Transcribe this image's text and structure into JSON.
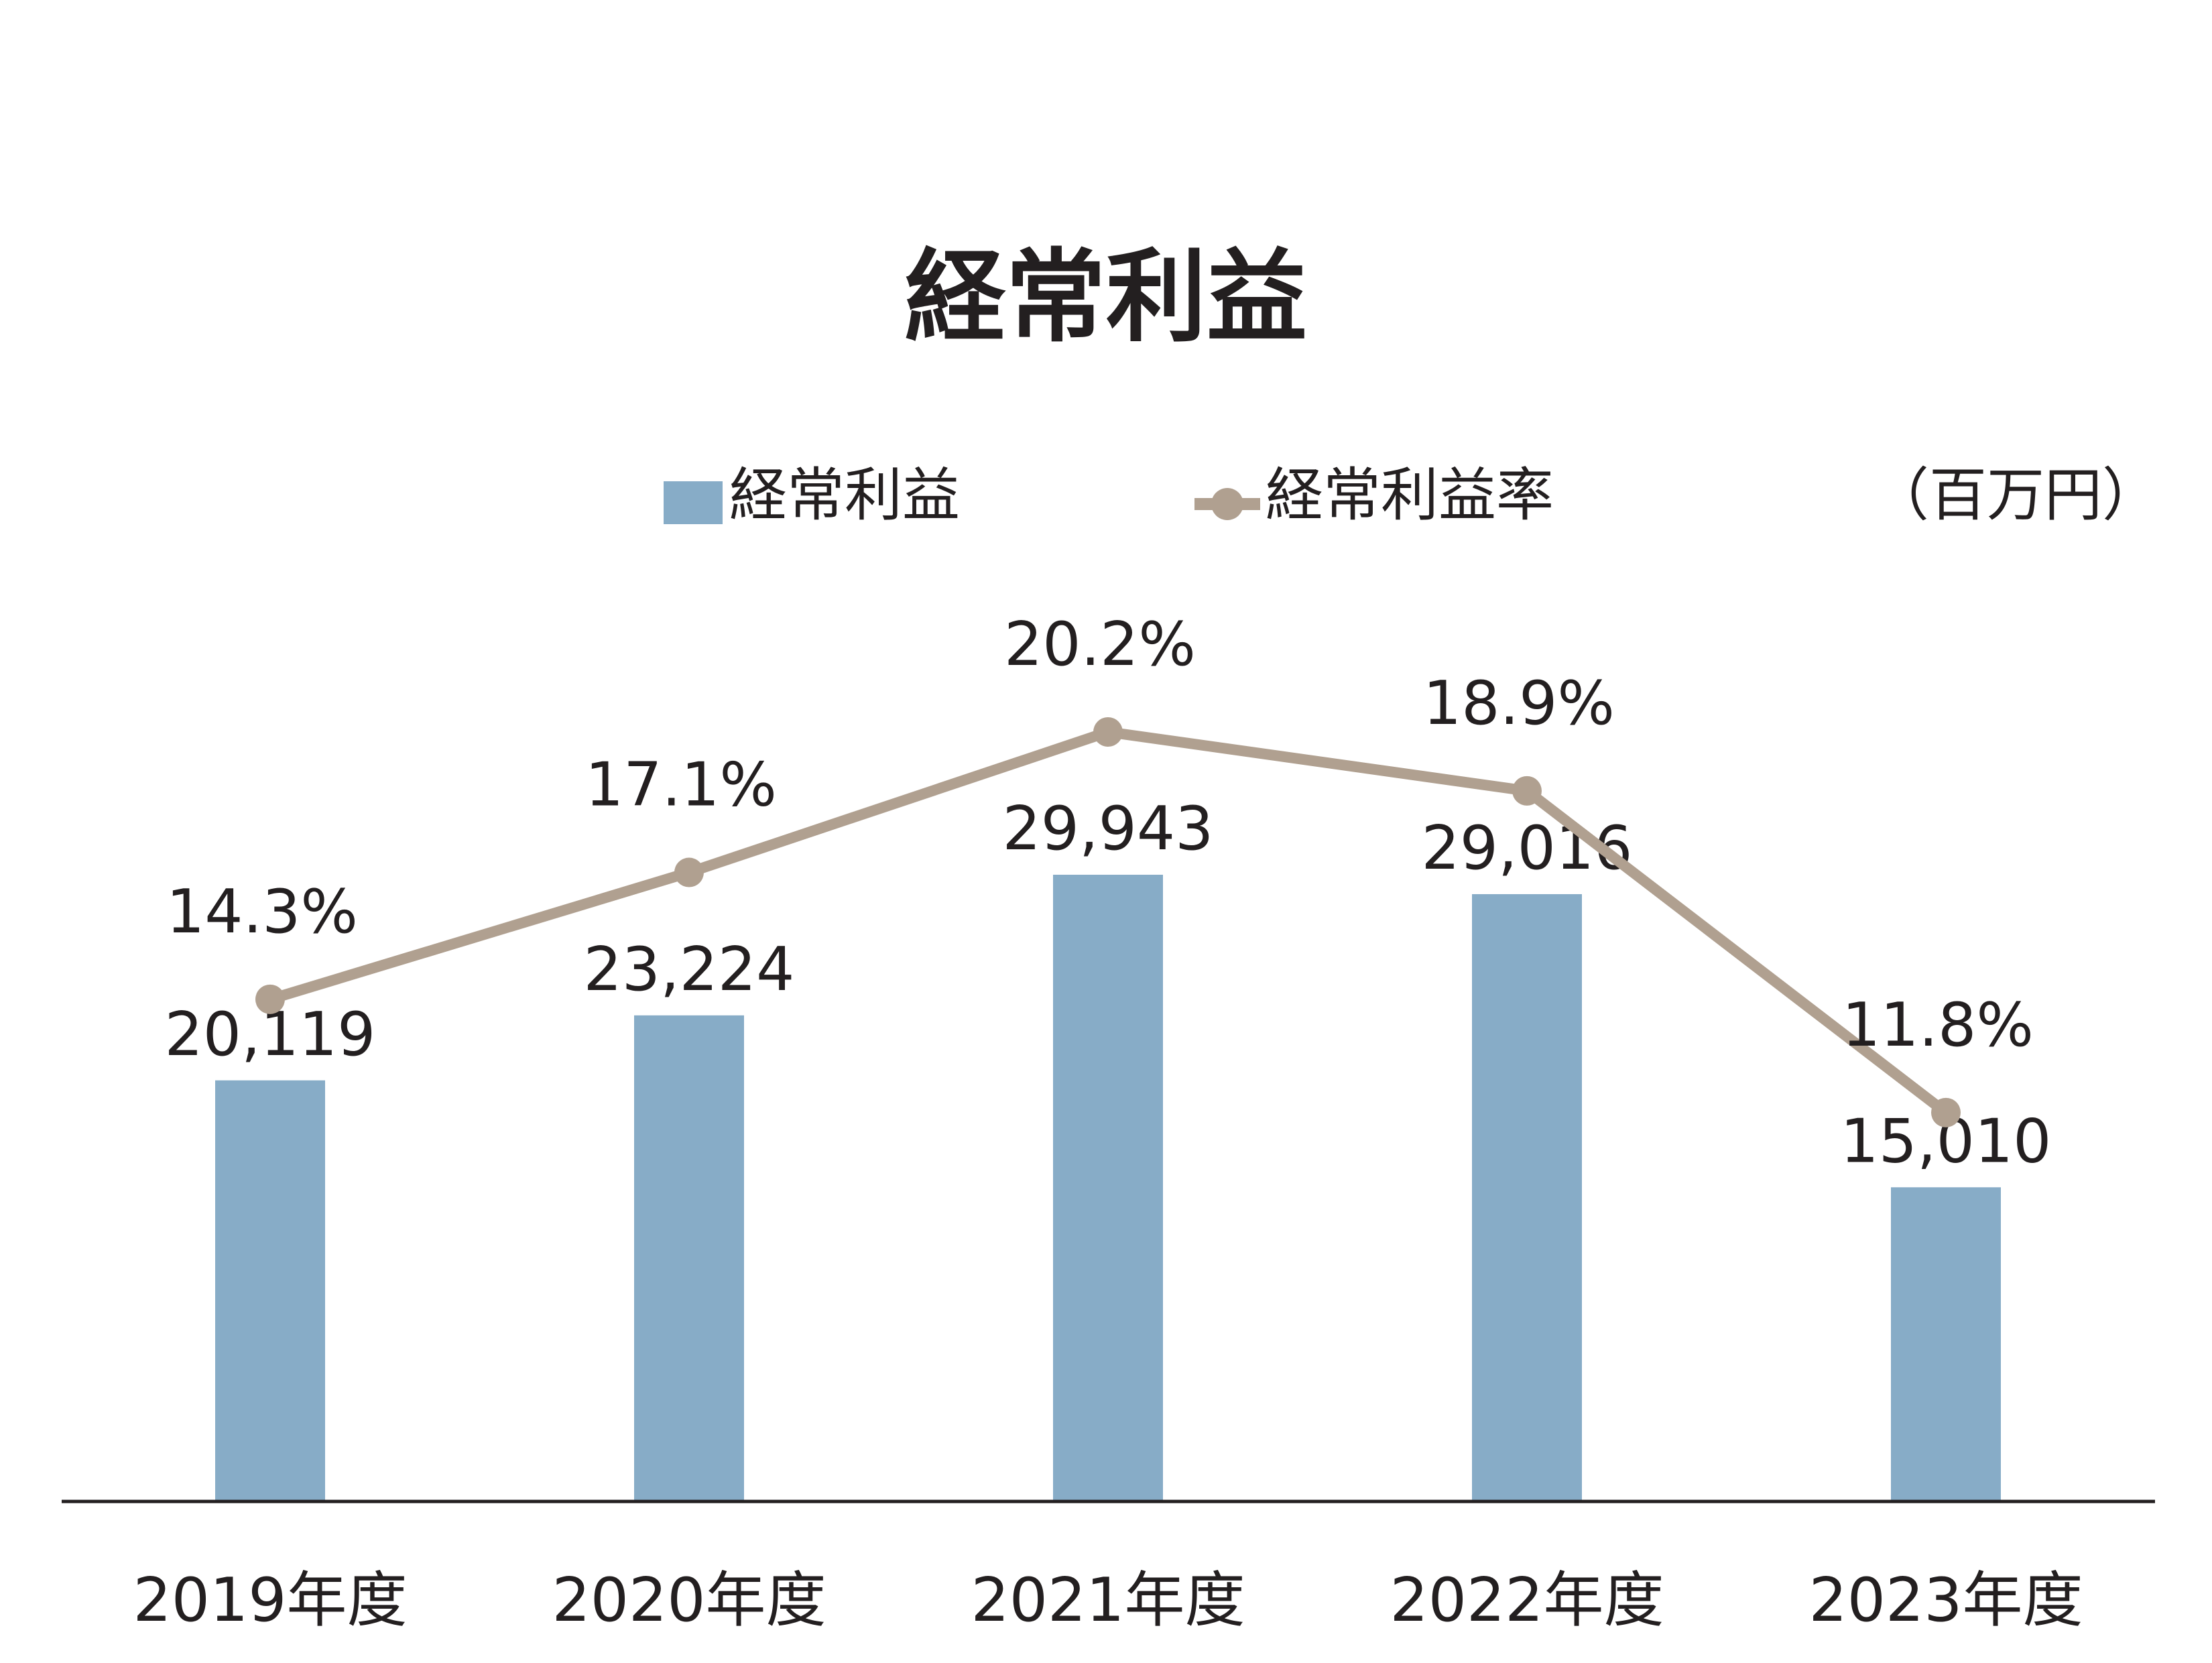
{
  "chart_data": {
    "type": "bar",
    "title": "経常利益",
    "unit": "（百万円）",
    "categories": [
      "2019年度",
      "2020年度",
      "2021年度",
      "2022年度",
      "2023年度"
    ],
    "series": [
      {
        "name": "経常利益",
        "kind": "bar",
        "values": [
          20119,
          23224,
          29943,
          29016,
          15010
        ],
        "labels": [
          "20,119",
          "23,224",
          "29,943",
          "29,016",
          "15,010"
        ],
        "color": "#87acc7"
      },
      {
        "name": "経常利益率",
        "kind": "line",
        "values": [
          14.3,
          17.1,
          20.2,
          18.9,
          11.8
        ],
        "labels": [
          "14.3%",
          "17.1%",
          "20.2%",
          "18.9%",
          "11.8%"
        ],
        "color": "#b0a090"
      }
    ],
    "legend_position": "top",
    "grid": false
  }
}
